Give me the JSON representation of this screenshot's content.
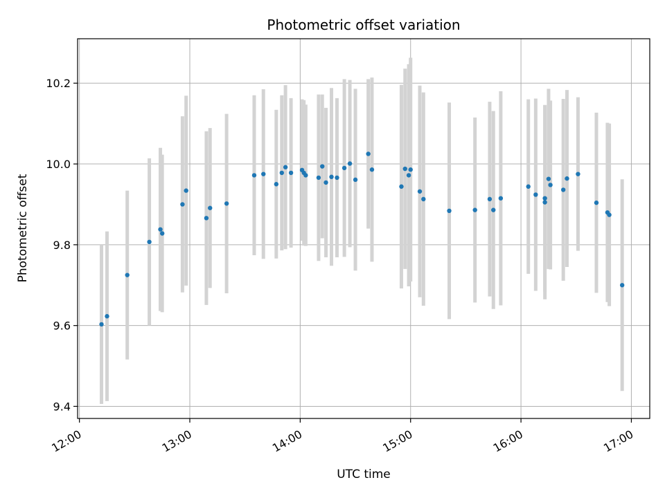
{
  "chart_data": {
    "type": "scatter",
    "title": "Photometric offset variation",
    "xlabel": "UTC time",
    "ylabel": "Photometric offset",
    "x_ticks": [
      "12:00",
      "13:00",
      "14:00",
      "15:00",
      "16:00",
      "17:00"
    ],
    "y_ticks": [
      "9.4",
      "9.6",
      "9.8",
      "10.0",
      "10.2"
    ],
    "xlim": [
      "11:59",
      "17:10"
    ],
    "ylim": [
      9.37,
      10.31
    ],
    "grid": true,
    "colors": {
      "point": "#1f77b4",
      "errorbar": "#d3d3d3",
      "grid": "#b0b0b0"
    },
    "series": [
      {
        "x": [
          "12:12",
          "12:15",
          "12:26",
          "12:38",
          "12:44",
          "12:45",
          "12:56",
          "12:58",
          "13:09",
          "13:11",
          "13:20",
          "13:35",
          "13:40",
          "13:47",
          "13:50",
          "13:52",
          "13:55",
          "14:01",
          "14:02",
          "14:03",
          "14:10",
          "14:12",
          "14:14",
          "14:17",
          "14:20",
          "14:24",
          "14:27",
          "14:30",
          "14:37",
          "14:39",
          "14:55",
          "14:57",
          "14:59",
          "15:00",
          "15:05",
          "15:07",
          "15:21",
          "15:35",
          "15:43",
          "15:45",
          "15:49",
          "16:04",
          "16:08",
          "16:13",
          "16:13",
          "16:15",
          "16:16",
          "16:23",
          "16:25",
          "16:31",
          "16:41",
          "16:47",
          "16:48",
          "16:55"
        ],
        "y": [
          9.603,
          9.623,
          9.725,
          9.807,
          9.838,
          9.828,
          9.9,
          9.934,
          9.866,
          9.891,
          9.902,
          9.972,
          9.975,
          9.95,
          9.978,
          9.992,
          9.978,
          9.985,
          9.978,
          9.972,
          9.966,
          9.994,
          9.954,
          9.968,
          9.966,
          9.99,
          10.001,
          9.961,
          10.025,
          9.986,
          9.944,
          9.988,
          9.972,
          9.986,
          9.932,
          9.913,
          9.884,
          9.886,
          9.913,
          9.886,
          9.915,
          9.944,
          9.924,
          9.905,
          9.915,
          9.963,
          9.948,
          9.936,
          9.964,
          9.975,
          9.904,
          9.88,
          9.874,
          9.7
        ],
        "yerr": [
          0.197,
          0.21,
          0.209,
          0.207,
          0.202,
          0.195,
          0.218,
          0.235,
          0.215,
          0.198,
          0.222,
          0.198,
          0.21,
          0.184,
          0.192,
          0.203,
          0.185,
          0.175,
          0.18,
          0.175,
          0.206,
          0.178,
          0.185,
          0.22,
          0.197,
          0.22,
          0.207,
          0.225,
          0.185,
          0.228,
          0.252,
          0.248,
          0.275,
          0.277,
          0.262,
          0.264,
          0.268,
          0.229,
          0.241,
          0.245,
          0.265,
          0.216,
          0.238,
          0.24,
          0.231,
          0.223,
          0.209,
          0.225,
          0.219,
          0.19,
          0.223,
          0.222,
          0.226,
          0.262
        ]
      }
    ]
  }
}
